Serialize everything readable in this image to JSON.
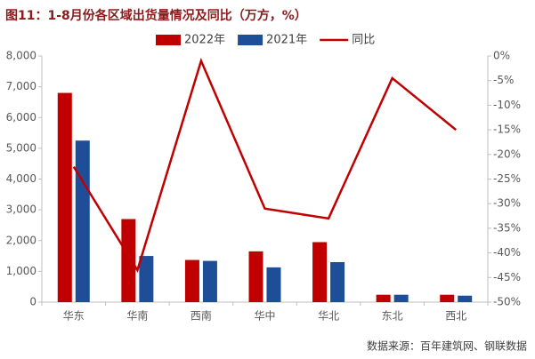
{
  "chart_data": {
    "type": "bar",
    "title": "图11：1-8月份各区域出货量情况及同比（万方，%）",
    "source": "数据来源：百年建筑网、钢联数据",
    "categories": [
      "华东",
      "华南",
      "西南",
      "华中",
      "华北",
      "东北",
      "西北"
    ],
    "series": [
      {
        "name": "2022年",
        "color": "#c00000",
        "type": "bar",
        "values": [
          6800,
          2700,
          1370,
          1650,
          1950,
          240,
          240
        ]
      },
      {
        "name": "2021年",
        "color": "#1f4e99",
        "type": "bar",
        "values": [
          5250,
          1500,
          1340,
          1130,
          1300,
          240,
          210
        ]
      },
      {
        "name": "同比",
        "color": "#c00000",
        "type": "line",
        "axis": "y2",
        "values": [
          -22.5,
          -43.5,
          -1,
          -31,
          -33,
          -4.5,
          -15
        ]
      }
    ],
    "ylim": [
      0,
      8000
    ],
    "yticks": [
      0,
      {
        "value": 1000,
        "label": "1,000"
      },
      {
        "value": 2000,
        "label": "2,000"
      },
      {
        "value": 3000,
        "label": "3,000"
      },
      {
        "value": 4000,
        "label": "4,000"
      },
      {
        "value": 5000,
        "label": "5,000"
      },
      {
        "value": 6000,
        "label": "6,000"
      },
      {
        "value": 7000,
        "label": "7,000"
      },
      {
        "value": 8000,
        "label": "8,000"
      }
    ],
    "y2lim": [
      -50,
      0
    ],
    "y2ticks": [
      {
        "value": 0,
        "label": "0%"
      },
      {
        "value": -5,
        "label": "-5%"
      },
      {
        "value": -10,
        "label": "-10%"
      },
      {
        "value": -15,
        "label": "-15%"
      },
      {
        "value": -20,
        "label": "-20%"
      },
      {
        "value": -25,
        "label": "-25%"
      },
      {
        "value": -30,
        "label": "-30%"
      },
      {
        "value": -35,
        "label": "-35%"
      },
      {
        "value": -40,
        "label": "-40%"
      },
      {
        "value": -45,
        "label": "-45%"
      },
      {
        "value": -50,
        "label": "-50%"
      }
    ],
    "grid": false
  }
}
